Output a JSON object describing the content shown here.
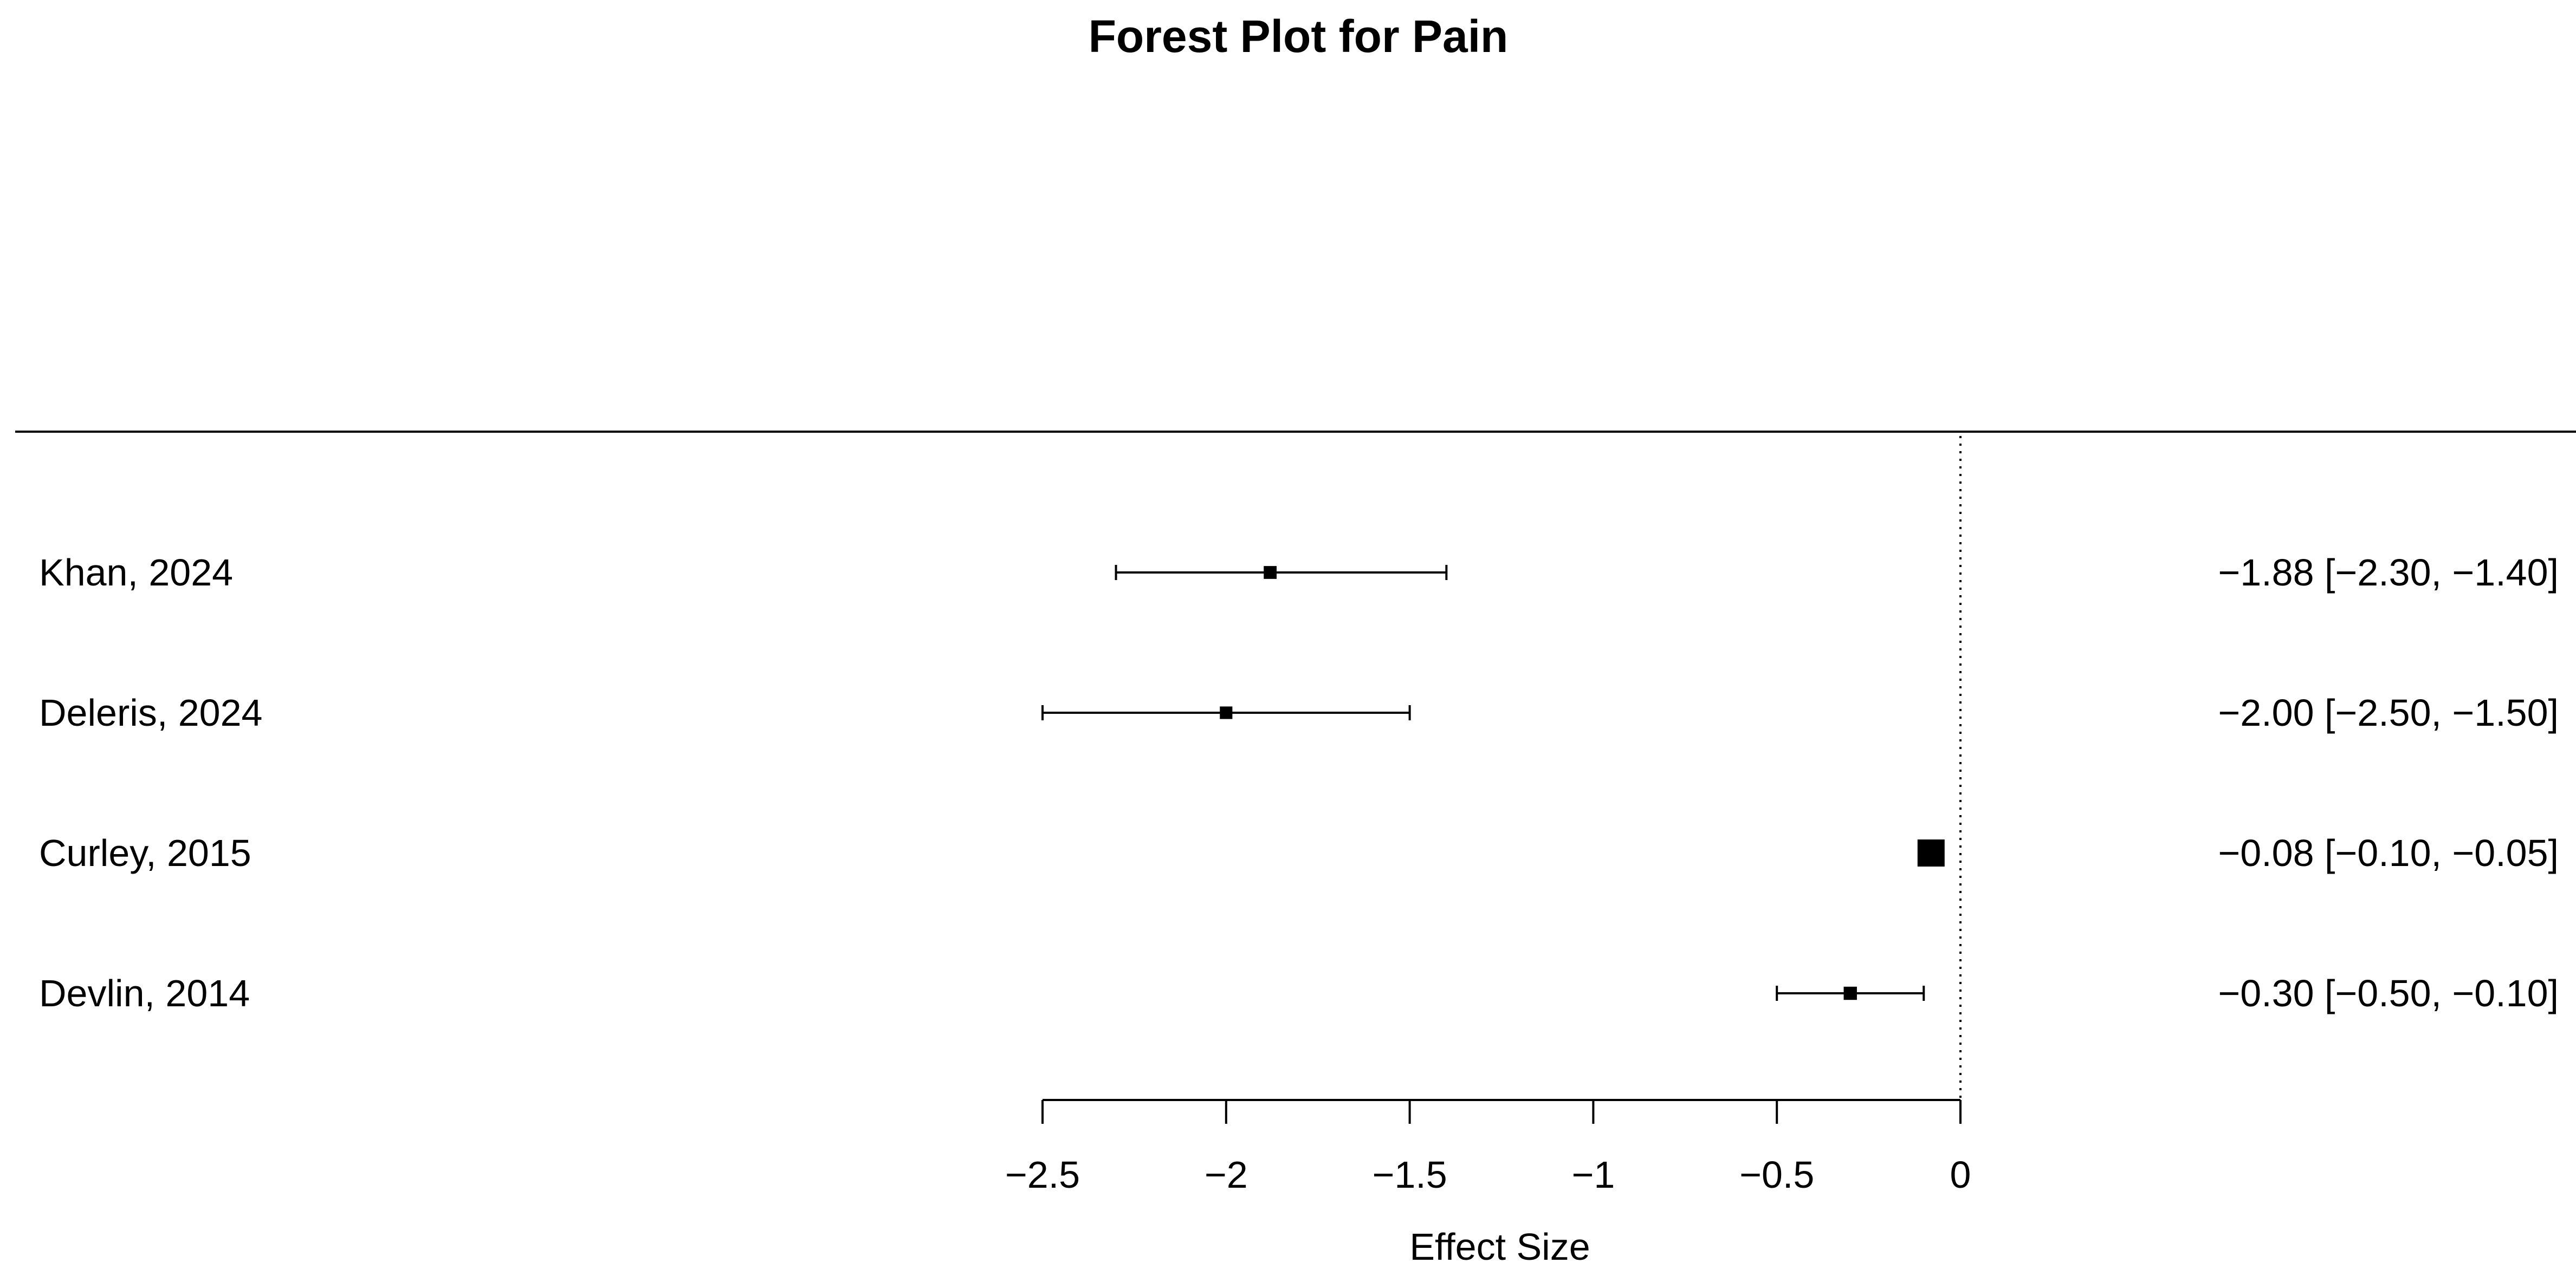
{
  "chart_data": {
    "type": "forest",
    "title": "Forest Plot for Pain",
    "xlabel": "Effect Size",
    "xlim": [
      -2.5,
      0
    ],
    "xticks": [
      -2.5,
      -2,
      -1.5,
      -1,
      -0.5,
      0
    ],
    "xtick_labels": [
      "−2.5",
      "−2",
      "−1.5",
      "−1",
      "−0.5",
      "0"
    ],
    "reference_line": 0,
    "studies": [
      {
        "label": "Khan, 2024",
        "estimate": -1.88,
        "lower": -2.3,
        "upper": -1.4,
        "ci_text": "−1.88 [−2.30, −1.40]",
        "weight": 0.18
      },
      {
        "label": "Deleris, 2024",
        "estimate": -2.0,
        "lower": -2.5,
        "upper": -1.5,
        "ci_text": "−2.00 [−2.50, −1.50]",
        "weight": 0.16
      },
      {
        "label": "Curley, 2015",
        "estimate": -0.08,
        "lower": -0.1,
        "upper": -0.05,
        "ci_text": "−0.08 [−0.10, −0.05]",
        "weight": 1.0
      },
      {
        "label": "Devlin, 2014",
        "estimate": -0.3,
        "lower": -0.5,
        "upper": -0.1,
        "ci_text": "−0.30 [−0.50, −0.10]",
        "weight": 0.2
      }
    ]
  }
}
